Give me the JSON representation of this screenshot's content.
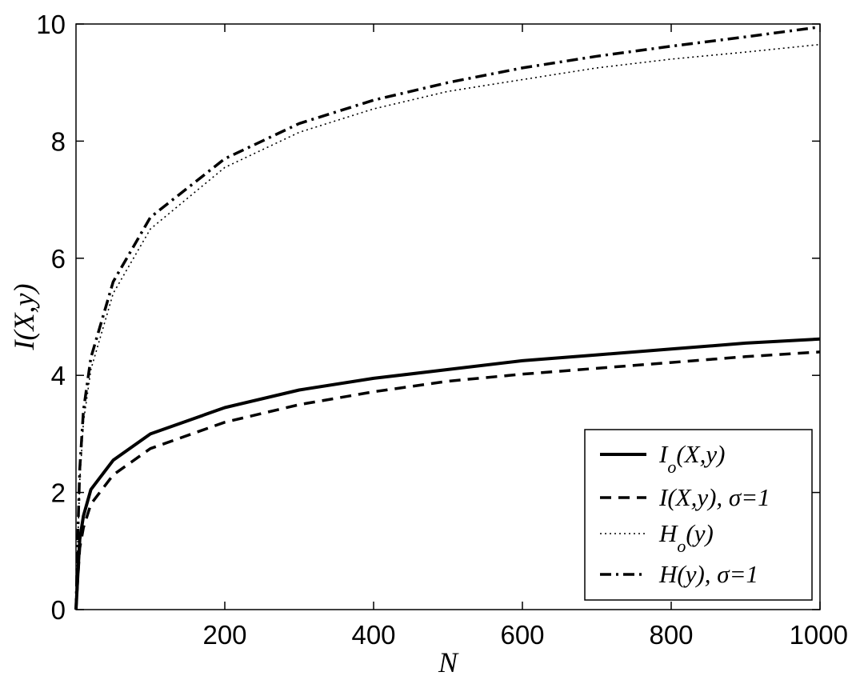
{
  "chart_data": {
    "type": "line",
    "title": "",
    "xlabel": "N",
    "ylabel": "I(X,y)",
    "xlim": [
      0,
      1000
    ],
    "ylim": [
      0,
      10
    ],
    "x_ticks": [
      "200",
      "400",
      "600",
      "800",
      "1000"
    ],
    "y_ticks": [
      "0",
      "2",
      "4",
      "6",
      "8",
      "10"
    ],
    "grid": false,
    "legend_position": "bottom-right",
    "x": [
      2,
      5,
      10,
      20,
      50,
      100,
      200,
      300,
      400,
      500,
      600,
      700,
      800,
      900,
      1000
    ],
    "series": [
      {
        "name": "I_o(X,y)",
        "legend": {
          "main": "I",
          "sub": "o",
          "rest": "(X,y)"
        },
        "style": "solid",
        "values": [
          0.5,
          1.2,
          1.6,
          2.05,
          2.55,
          3.0,
          3.45,
          3.75,
          3.95,
          4.1,
          4.25,
          4.35,
          4.45,
          4.55,
          4.62
        ]
      },
      {
        "name": "I(X,y), σ=1",
        "legend": {
          "main": "I(X,y), σ=1",
          "sub": "",
          "rest": ""
        },
        "style": "dashed",
        "values": [
          0.45,
          1.05,
          1.4,
          1.8,
          2.3,
          2.75,
          3.2,
          3.5,
          3.72,
          3.9,
          4.02,
          4.12,
          4.22,
          4.32,
          4.4
        ]
      },
      {
        "name": "H_o(y)",
        "legend": {
          "main": "H",
          "sub": "o",
          "rest": "(y)"
        },
        "style": "dotted",
        "values": [
          1.0,
          2.2,
          3.2,
          4.1,
          5.4,
          6.5,
          7.55,
          8.15,
          8.55,
          8.85,
          9.05,
          9.25,
          9.4,
          9.52,
          9.65
        ]
      },
      {
        "name": "H(y), σ=1",
        "legend": {
          "main": "H(y), σ=1",
          "sub": "",
          "rest": ""
        },
        "style": "dashdot",
        "values": [
          1.1,
          2.4,
          3.4,
          4.3,
          5.6,
          6.7,
          7.7,
          8.3,
          8.7,
          9.0,
          9.25,
          9.45,
          9.62,
          9.78,
          9.95
        ]
      }
    ]
  }
}
